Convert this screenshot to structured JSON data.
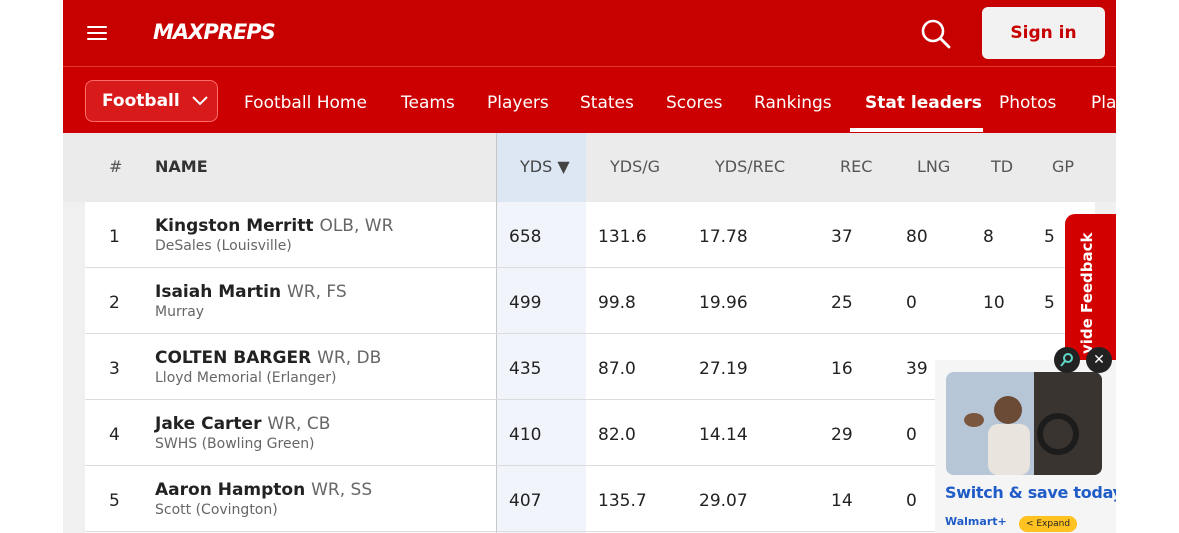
{
  "header": {
    "logo": "MAXPREPS",
    "sign_in_label": "Sign in"
  },
  "nav": {
    "sport": "Football",
    "items": [
      "Football Home",
      "Teams",
      "Players",
      "States",
      "Scores",
      "Rankings",
      "Stat leaders",
      "Photos",
      "Pla"
    ],
    "active": "Stat leaders"
  },
  "table": {
    "columns": [
      "#",
      "NAME",
      "YDS ▼",
      "YDS/G",
      "YDS/REC",
      "REC",
      "LNG",
      "TD",
      "GP"
    ],
    "sorted_column": "YDS",
    "rows": [
      {
        "rank": "1",
        "name": "Kingston Merritt",
        "pos": "OLB, WR",
        "school": "DeSales (Louisville)",
        "yds": "658",
        "ydsg": "131.6",
        "ydsrec": "17.78",
        "rec": "37",
        "lng": "80",
        "td": "8",
        "gp": "5"
      },
      {
        "rank": "2",
        "name": "Isaiah Martin",
        "pos": "WR, FS",
        "school": "Murray",
        "yds": "499",
        "ydsg": "99.8",
        "ydsrec": "19.96",
        "rec": "25",
        "lng": "0",
        "td": "10",
        "gp": "5"
      },
      {
        "rank": "3",
        "name": "COLTEN BARGER",
        "pos": "WR, DB",
        "school": "Lloyd Memorial (Erlanger)",
        "yds": "435",
        "ydsg": "87.0",
        "ydsrec": "27.19",
        "rec": "16",
        "lng": "39",
        "td": "",
        "gp": ""
      },
      {
        "rank": "4",
        "name": "Jake Carter",
        "pos": "WR, CB",
        "school": "SWHS (Bowling Green)",
        "yds": "410",
        "ydsg": "82.0",
        "ydsrec": "14.14",
        "rec": "29",
        "lng": "0",
        "td": "",
        "gp": ""
      },
      {
        "rank": "5",
        "name": "Aaron Hampton",
        "pos": "WR, SS",
        "school": "Scott (Covington)",
        "yds": "407",
        "ydsg": "135.7",
        "ydsrec": "29.07",
        "rec": "14",
        "lng": "0",
        "td": "",
        "gp": ""
      }
    ]
  },
  "feedback_label": "vide Feedback",
  "ad": {
    "headline": "Switch & save today.",
    "brand": "Walmart+",
    "expand_label": "< Expand",
    "close_glyph": "✕"
  },
  "colors": {
    "brand_red": "#c70000",
    "link_blue": "#1f5cc7"
  }
}
